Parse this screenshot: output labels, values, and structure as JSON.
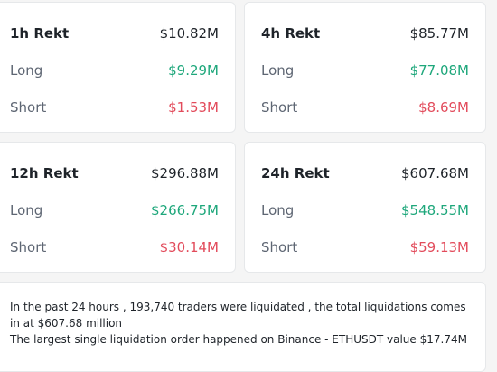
{
  "cards": [
    {
      "title": "1h Rekt",
      "total": "$10.82M",
      "long_label": "Long",
      "long": "$9.29M",
      "short_label": "Short",
      "short": "$1.53M"
    },
    {
      "title": "4h Rekt",
      "total": "$85.77M",
      "long_label": "Long",
      "long": "$77.08M",
      "short_label": "Short",
      "short": "$8.69M"
    },
    {
      "title": "12h Rekt",
      "total": "$296.88M",
      "long_label": "Long",
      "long": "$266.75M",
      "short_label": "Short",
      "short": "$30.14M"
    },
    {
      "title": "24h Rekt",
      "total": "$607.68M",
      "long_label": "Long",
      "long": "$548.55M",
      "short_label": "Short",
      "short": "$59.13M"
    }
  ],
  "summary": {
    "line1": "In the past 24 hours , 193,740 traders were liquidated , the total liquidations comes in at $607.68 million",
    "line2": "The largest single liquidation order happened on Binance - ETHUSDT value $17.74M"
  },
  "colors": {
    "long": "#1ea77b",
    "short": "#e24b5b"
  }
}
